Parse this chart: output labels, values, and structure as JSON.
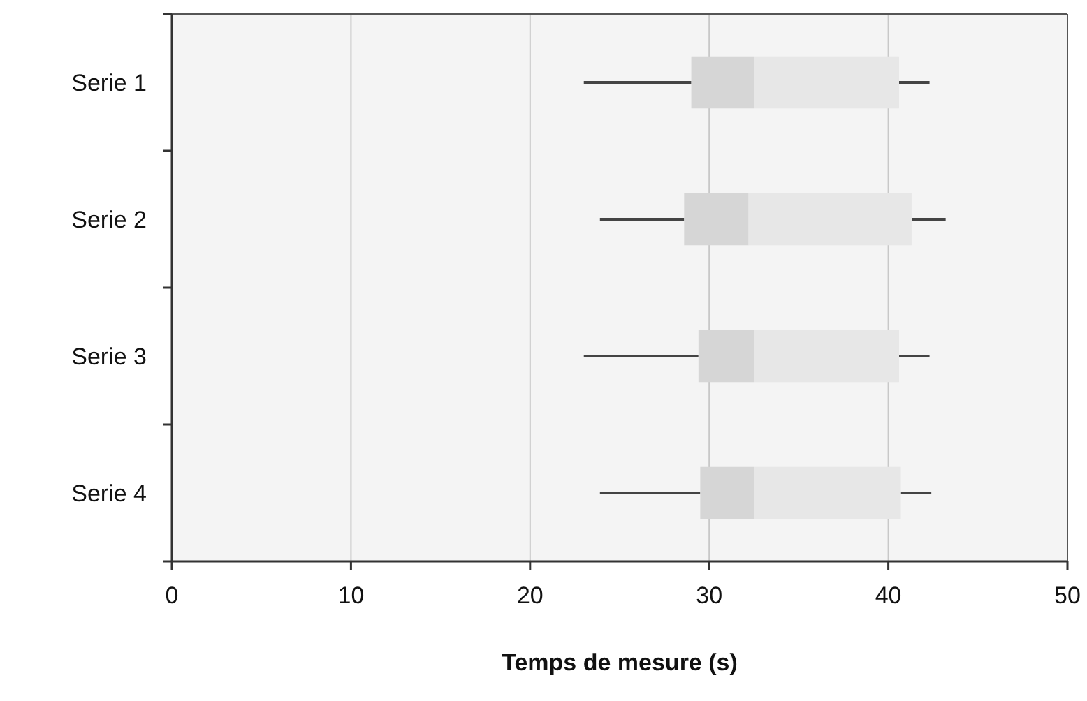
{
  "chart_data": {
    "type": "box",
    "orientation": "horizontal",
    "xlabel": "Temps de mesure (s)",
    "categories": [
      "Serie 1",
      "Serie 2",
      "Serie 3",
      "Serie 4"
    ],
    "series": [
      {
        "color": "#d6d6d6",
        "boxes": [
          {
            "low": 23.0,
            "q1": 29.0,
            "median": 32.5,
            "q3": 40.6,
            "high": 42.3
          },
          {
            "low": 23.9,
            "q1": 28.6,
            "median": 32.2,
            "q3": 41.3,
            "high": 43.2
          },
          {
            "low": 23.0,
            "q1": 29.4,
            "median": 32.5,
            "q3": 40.6,
            "high": 42.3
          },
          {
            "low": 23.9,
            "q1": 29.5,
            "median": 32.5,
            "q3": 40.7,
            "high": 42.4
          }
        ]
      }
    ],
    "xlim": [
      0,
      50
    ],
    "xticks": [
      0,
      10,
      20,
      30,
      40,
      50
    ],
    "grid": "x"
  }
}
